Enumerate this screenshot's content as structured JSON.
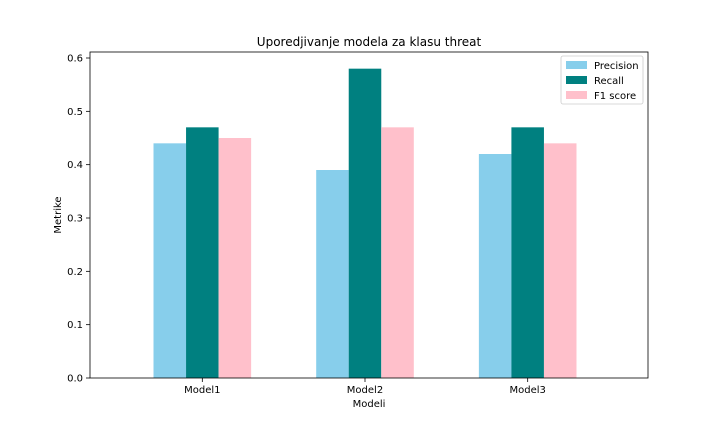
{
  "chart_data": {
    "type": "bar",
    "title": "Uporedjivanje modela za klasu threat",
    "xlabel": "Modeli",
    "ylabel": "Metrike",
    "categories": [
      "Model1",
      "Model2",
      "Model3"
    ],
    "ylim": [
      0,
      0.6
    ],
    "yticks": [
      "0.0",
      "0.1",
      "0.2",
      "0.3",
      "0.4",
      "0.5",
      "0.6"
    ],
    "series": [
      {
        "name": "Precision",
        "color": "#87ceeb",
        "values": [
          0.44,
          0.39,
          0.42
        ]
      },
      {
        "name": "Recall",
        "color": "#008080",
        "values": [
          0.47,
          0.58,
          0.47
        ]
      },
      {
        "name": "F1 score",
        "color": "#ffc0cb",
        "values": [
          0.45,
          0.47,
          0.44
        ]
      }
    ],
    "legend_position": "top-right",
    "grid": false
  }
}
